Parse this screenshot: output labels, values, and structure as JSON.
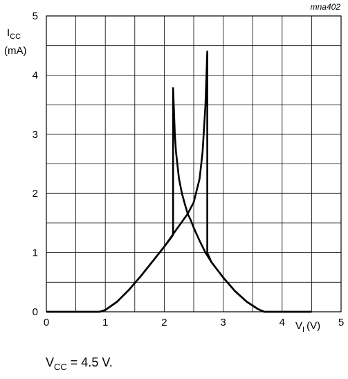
{
  "chart_data": {
    "type": "line",
    "reference": "mna402",
    "y_axis": {
      "symbol": "I",
      "subscript": "CC",
      "unit": "(mA)",
      "ylim": [
        0,
        5
      ],
      "ticks": [
        "0",
        "1",
        "2",
        "3",
        "4",
        "5"
      ]
    },
    "x_axis": {
      "symbol": "V",
      "subscript": "I",
      "unit": "(V)",
      "xlim": [
        0,
        5
      ],
      "ticks": [
        "0",
        "1",
        "2",
        "3",
        "4",
        "5"
      ]
    },
    "grid": true,
    "condition": {
      "symbol": "V",
      "subscript": "CC",
      "text": " = 4.5 V."
    },
    "series": [
      {
        "values": [
          [
            0,
            0
          ],
          [
            0.9,
            0
          ],
          [
            1.0,
            0.03
          ],
          [
            1.2,
            0.17
          ],
          [
            1.4,
            0.37
          ],
          [
            1.6,
            0.6
          ],
          [
            1.8,
            0.85
          ],
          [
            2.0,
            1.1
          ],
          [
            2.1,
            1.23
          ],
          [
            2.15,
            1.3
          ],
          [
            2.15,
            3.78
          ],
          [
            2.18,
            3.0
          ],
          [
            2.2,
            2.7
          ],
          [
            2.25,
            2.25
          ],
          [
            2.3,
            2.0
          ],
          [
            2.35,
            1.82
          ],
          [
            2.4,
            1.65
          ],
          [
            2.45,
            1.55
          ],
          [
            2.5,
            1.42
          ],
          [
            2.6,
            1.2
          ],
          [
            2.7,
            1.0
          ],
          [
            2.8,
            0.84
          ],
          [
            3.0,
            0.58
          ],
          [
            3.2,
            0.35
          ],
          [
            3.4,
            0.17
          ],
          [
            3.6,
            0.04
          ],
          [
            3.7,
            0
          ],
          [
            4.5,
            0
          ]
        ]
      },
      {
        "values": [
          [
            0,
            0
          ],
          [
            0.9,
            0
          ],
          [
            1.0,
            0.03
          ],
          [
            1.2,
            0.17
          ],
          [
            1.4,
            0.37
          ],
          [
            1.6,
            0.6
          ],
          [
            1.8,
            0.85
          ],
          [
            2.0,
            1.1
          ],
          [
            2.2,
            1.38
          ],
          [
            2.4,
            1.66
          ],
          [
            2.5,
            1.85
          ],
          [
            2.6,
            2.25
          ],
          [
            2.65,
            2.7
          ],
          [
            2.7,
            3.5
          ],
          [
            2.73,
            4.4
          ],
          [
            2.73,
            1.0
          ],
          [
            2.8,
            0.84
          ],
          [
            3.0,
            0.58
          ],
          [
            3.2,
            0.35
          ],
          [
            3.4,
            0.17
          ],
          [
            3.6,
            0.04
          ],
          [
            3.7,
            0
          ],
          [
            4.5,
            0
          ]
        ]
      }
    ]
  }
}
